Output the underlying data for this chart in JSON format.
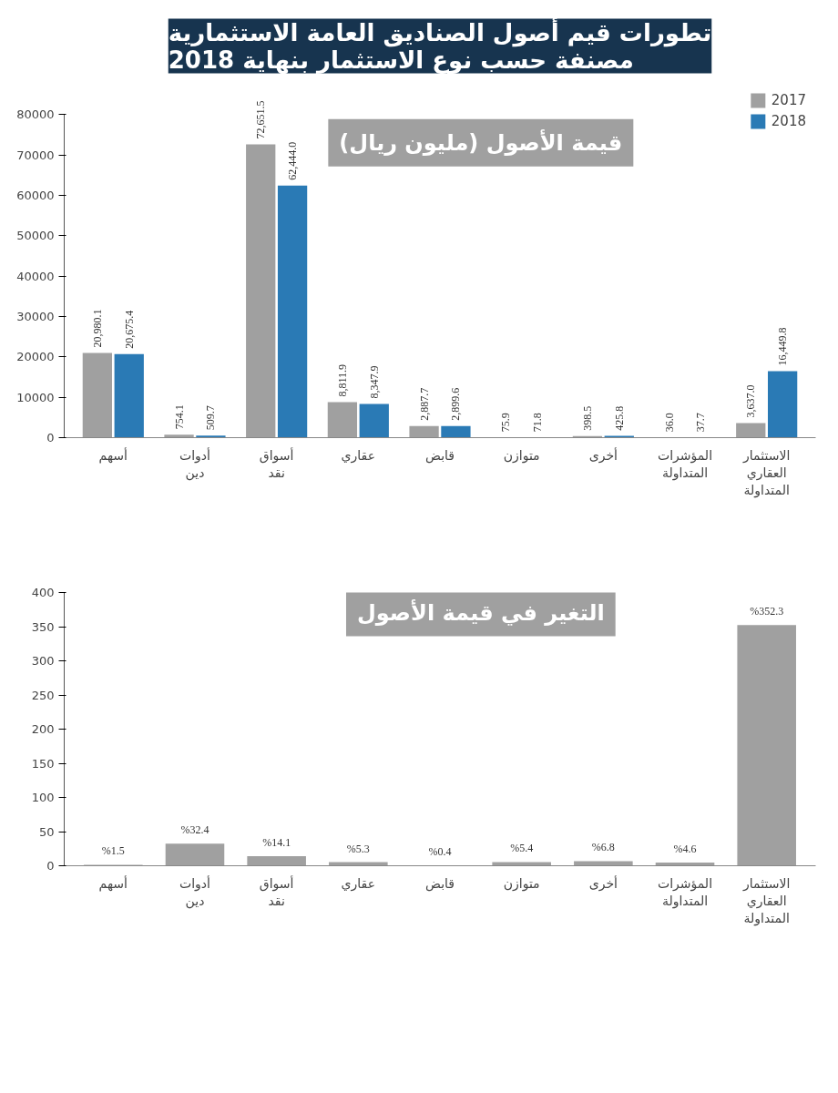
{
  "chart_data": [
    {
      "type": "bar",
      "title": "تطورات قيم أصول الصناديق العامة الاستثمارية\nمصنفة حسب نوع الاستثمار بنهاية 2018",
      "subtitle": "قيمة الأصول (مليون ريال)",
      "categories": [
        "أسهم",
        "أدوات\nدين",
        "أسواق\nنقد",
        "عقاري",
        "قابض",
        "متوازن",
        "أخرى",
        "المؤشرات\nالمتداولة",
        "الاستثمار\nالعقاري\nالمتداولة"
      ],
      "series": [
        {
          "name": "2017",
          "color": "#a0a0a0",
          "values": [
            20980.1,
            754.1,
            72651.5,
            8811.9,
            2887.7,
            75.9,
            398.5,
            36.0,
            3637.0
          ],
          "value_labels": [
            "20,980.1",
            "754.1",
            "72,651.5",
            "8,811.9",
            "2,887.7",
            "75.9",
            "398.5",
            "36.0",
            "3,637.0"
          ]
        },
        {
          "name": "2018",
          "color": "#2a7ab5",
          "values": [
            20675.4,
            509.7,
            62444.0,
            8347.9,
            2899.6,
            71.8,
            425.8,
            37.7,
            16449.8
          ],
          "value_labels": [
            "20,675.4",
            "509.7",
            "62,444.0",
            "8,347.9",
            "2,899.6",
            "71.8",
            "425.8",
            "37.7",
            "16,449.8"
          ]
        }
      ],
      "ylim": [
        0,
        80000
      ],
      "yticks": [
        0,
        10000,
        20000,
        30000,
        40000,
        50000,
        60000,
        70000,
        80000
      ],
      "grid": false,
      "legend": "top right"
    },
    {
      "type": "bar",
      "subtitle": "التغير في قيمة الأصول",
      "categories": [
        "أسهم",
        "أدوات\nدين",
        "أسواق\nنقد",
        "عقاري",
        "قابض",
        "متوازن",
        "أخرى",
        "المؤشرات\nالمتداولة",
        "الاستثمار\nالعقاري\nالمتداولة"
      ],
      "color": "#a0a0a0",
      "values": [
        1.5,
        32.4,
        14.1,
        5.3,
        0.4,
        5.4,
        6.8,
        4.6,
        352.3
      ],
      "value_labels": [
        "%1.5",
        "%32.4",
        "%14.1",
        "%5.3",
        "%0.4",
        "%5.4",
        "%6.8",
        "%4.6",
        "%352.3"
      ],
      "ylim": [
        0,
        400
      ],
      "yticks": [
        0,
        50,
        100,
        150,
        200,
        250,
        300,
        350,
        400
      ],
      "grid": false
    }
  ]
}
